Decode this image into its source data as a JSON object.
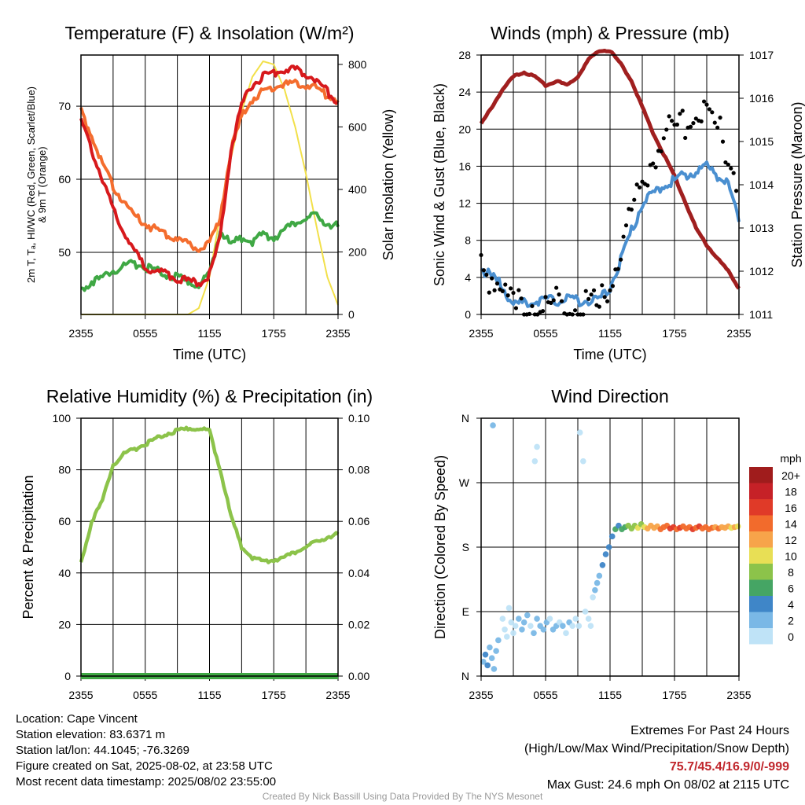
{
  "chart_data": [
    {
      "type": "line",
      "title": "Temperature (F) & Insolation (W/m²)",
      "xlabel": "Time (UTC)",
      "ylabel": "2m T, Tₐ, HI/WC (Red, Green, Scarlet/Blue) & 9m T (Orange)",
      "ylabel_right": "Solar Insolation (Yellow)",
      "x_ticks": [
        "2355",
        "0555",
        "1155",
        "1755",
        "2355"
      ],
      "ylim": [
        41.5,
        77
      ],
      "y_ticks": [
        50,
        60,
        70
      ],
      "ylim_right": [
        0,
        830
      ],
      "y_ticks_right": [
        0,
        200,
        400,
        600,
        800
      ],
      "x": [
        0,
        1,
        2,
        3,
        4,
        5,
        6,
        7,
        8,
        9,
        10,
        11,
        12,
        13,
        14,
        15,
        16,
        17,
        18,
        19,
        20,
        21,
        22,
        23,
        24
      ],
      "series": [
        {
          "name": "2m T",
          "color": "#d7191c",
          "values": [
            68,
            64,
            60,
            56,
            53,
            50,
            48,
            47.5,
            47,
            46.5,
            46,
            45.8,
            47,
            52,
            64,
            70,
            73,
            74,
            74.5,
            75,
            75,
            74.5,
            73.5,
            72,
            70.5
          ]
        },
        {
          "name": "9m T",
          "color": "#f46d2e",
          "values": [
            69.5,
            66,
            62,
            59,
            57,
            55,
            54,
            53,
            52.5,
            52,
            51,
            50.5,
            51,
            55,
            64,
            68.5,
            71,
            72,
            72.5,
            73,
            73,
            73,
            72.5,
            71.5,
            70.8
          ]
        },
        {
          "name": "Td",
          "color": "#3fa844",
          "values": [
            45,
            46,
            46.5,
            47.5,
            48,
            48.5,
            48,
            47.5,
            47,
            46.5,
            46,
            45.5,
            47,
            53,
            51,
            52,
            51.5,
            52.5,
            52,
            53,
            54,
            54.5,
            55,
            54,
            53.5
          ]
        },
        {
          "name": "Solar Insolation",
          "axis": "right",
          "color": "#f2e04a",
          "values": [
            0,
            0,
            0,
            0,
            0,
            0,
            0,
            0,
            0,
            0,
            0,
            20,
            120,
            320,
            500,
            650,
            760,
            810,
            800,
            720,
            600,
            450,
            280,
            120,
            30
          ]
        }
      ],
      "grid": true
    },
    {
      "type": "scatter",
      "title": "Winds (mph) & Pressure (mb)",
      "xlabel": "Time (UTC)",
      "ylabel": "Sonic Wind & Gust (Blue, Black)",
      "ylabel_right": "Station Pressure (Maroon)",
      "x_ticks": [
        "2355",
        "0555",
        "1155",
        "1755",
        "2355"
      ],
      "ylim": [
        0,
        28
      ],
      "y_ticks": [
        0,
        4,
        8,
        12,
        16,
        20,
        24,
        28
      ],
      "ylim_right": [
        1011,
        1017
      ],
      "y_ticks_right": [
        1011,
        1012,
        1013,
        1014,
        1015,
        1016,
        1017
      ],
      "x": [
        0,
        1,
        2,
        3,
        4,
        5,
        6,
        7,
        8,
        9,
        10,
        11,
        12,
        13,
        14,
        15,
        16,
        17,
        18,
        19,
        20,
        21,
        22,
        23,
        24
      ],
      "series": [
        {
          "name": "Wind",
          "color": "#4a8fd0",
          "values": [
            5,
            4,
            3,
            1,
            1.2,
            1.5,
            1.5,
            1.5,
            1.8,
            1.5,
            1.6,
            1.4,
            3,
            6,
            9,
            12,
            13,
            14,
            14.5,
            15,
            15.5,
            16,
            15,
            14,
            10
          ]
        },
        {
          "name": "Gust",
          "color": "#000000",
          "values": [
            6,
            5,
            4,
            1.5,
            1.8,
            2,
            2,
            2,
            2.2,
            2,
            2,
            1.8,
            4,
            8,
            12,
            15,
            18,
            20,
            21,
            22,
            23,
            22.5,
            21,
            18,
            15
          ]
        },
        {
          "name": "Pressure",
          "axis": "right",
          "color": "#a01f1f",
          "values": [
            1015.4,
            1015.8,
            1016.2,
            1016.5,
            1016.6,
            1016.5,
            1016.3,
            1016.4,
            1016.3,
            1016.5,
            1016.9,
            1017.1,
            1017.1,
            1016.8,
            1016.4,
            1015.8,
            1015.2,
            1014.7,
            1014.2,
            1013.6,
            1013.0,
            1012.6,
            1012.3,
            1012.0,
            1011.6
          ]
        }
      ],
      "grid": true
    },
    {
      "type": "line",
      "title": "Relative Humidity (%) & Precipitation (in)",
      "xlabel": "",
      "ylabel": "Percent & Precipitation",
      "x_ticks": [
        "2355",
        "0555",
        "1155",
        "1755",
        "2355"
      ],
      "ylim": [
        0,
        100
      ],
      "y_ticks": [
        0,
        20,
        40,
        60,
        80,
        100
      ],
      "ylim_right": [
        0,
        0.1
      ],
      "y_ticks_right": [
        "0.00",
        "0.02",
        "0.04",
        "0.06",
        "0.08",
        "0.10"
      ],
      "x": [
        0,
        1,
        2,
        3,
        4,
        5,
        6,
        7,
        8,
        9,
        10,
        11,
        12,
        13,
        14,
        15,
        16,
        17,
        18,
        19,
        20,
        21,
        22,
        23,
        24
      ],
      "series": [
        {
          "name": "RH",
          "color": "#8cc34a",
          "values": [
            44,
            60,
            68,
            82,
            86,
            88,
            90,
            92,
            94,
            95,
            96,
            96,
            95,
            80,
            62,
            50,
            46,
            44.5,
            45,
            46,
            48,
            50,
            52,
            54,
            55
          ]
        },
        {
          "name": "Precipitation",
          "color": "#3fa844",
          "values": [
            0,
            0,
            0,
            0,
            0,
            0,
            0,
            0,
            0,
            0,
            0,
            0,
            0,
            0,
            0,
            0,
            0,
            0,
            0,
            0,
            0,
            0,
            0,
            0,
            0
          ]
        }
      ],
      "grid": true
    },
    {
      "type": "scatter",
      "title": "Wind Direction",
      "ylabel": "Direction (Colored By Speed)",
      "x_ticks": [
        "2355",
        "0555",
        "1155",
        "1755",
        "2355"
      ],
      "y_ticks": [
        "N",
        "E",
        "S",
        "W",
        "N"
      ],
      "ylim": [
        0,
        360
      ],
      "legend_title": "mph",
      "legend_labels": [
        "20+",
        "18",
        "16",
        "14",
        "12",
        "10",
        "8",
        "6",
        "4",
        "2",
        "0"
      ],
      "legend_colors": [
        "#a01c1c",
        "#c62127",
        "#e03a28",
        "#f26b2c",
        "#f7a44a",
        "#e8df55",
        "#8cc34a",
        "#45a564",
        "#3f86c8",
        "#7ab8e6",
        "#bfe3f7"
      ],
      "points": [
        {
          "t": 0.2,
          "dir": 20,
          "spd": 3
        },
        {
          "t": 0.4,
          "dir": 30,
          "spd": 4
        },
        {
          "t": 0.6,
          "dir": 15,
          "spd": 4
        },
        {
          "t": 0.8,
          "dir": 40,
          "spd": 3
        },
        {
          "t": 1.0,
          "dir": 25,
          "spd": 2
        },
        {
          "t": 1.2,
          "dir": 10,
          "spd": 3
        },
        {
          "t": 1.4,
          "dir": 35,
          "spd": 2
        },
        {
          "t": 1.6,
          "dir": 50,
          "spd": 2
        },
        {
          "t": 1.1,
          "dir": 350,
          "spd": 3
        },
        {
          "t": 2.0,
          "dir": 80,
          "spd": 1
        },
        {
          "t": 2.2,
          "dir": 65,
          "spd": 1
        },
        {
          "t": 2.4,
          "dir": 55,
          "spd": 1
        },
        {
          "t": 2.6,
          "dir": 95,
          "spd": 1
        },
        {
          "t": 2.8,
          "dir": 75,
          "spd": 1
        },
        {
          "t": 3.0,
          "dir": 60,
          "spd": 1
        },
        {
          "t": 3.2,
          "dir": 70,
          "spd": 1
        },
        {
          "t": 3.5,
          "dir": 80,
          "spd": 2
        },
        {
          "t": 3.8,
          "dir": 65,
          "spd": 2
        },
        {
          "t": 4.0,
          "dir": 75,
          "spd": 2
        },
        {
          "t": 4.3,
          "dir": 85,
          "spd": 2
        },
        {
          "t": 4.6,
          "dir": 70,
          "spd": 1
        },
        {
          "t": 4.9,
          "dir": 60,
          "spd": 2
        },
        {
          "t": 5.2,
          "dir": 80,
          "spd": 2
        },
        {
          "t": 5.5,
          "dir": 70,
          "spd": 3
        },
        {
          "t": 5.8,
          "dir": 65,
          "spd": 2
        },
        {
          "t": 6.1,
          "dir": 75,
          "spd": 2
        },
        {
          "t": 6.4,
          "dir": 80,
          "spd": 1
        },
        {
          "t": 6.7,
          "dir": 65,
          "spd": 2
        },
        {
          "t": 7.0,
          "dir": 70,
          "spd": 2
        },
        {
          "t": 7.3,
          "dir": 75,
          "spd": 1
        },
        {
          "t": 7.6,
          "dir": 70,
          "spd": 2
        },
        {
          "t": 7.9,
          "dir": 60,
          "spd": 1
        },
        {
          "t": 8.2,
          "dir": 75,
          "spd": 2
        },
        {
          "t": 8.5,
          "dir": 70,
          "spd": 1
        },
        {
          "t": 8.8,
          "dir": 80,
          "spd": 1
        },
        {
          "t": 9.1,
          "dir": 70,
          "spd": 1
        },
        {
          "t": 5.0,
          "dir": 300,
          "spd": 1
        },
        {
          "t": 5.2,
          "dir": 320,
          "spd": 1
        },
        {
          "t": 9.2,
          "dir": 340,
          "spd": 1
        },
        {
          "t": 9.5,
          "dir": 300,
          "spd": 1
        },
        {
          "t": 9.7,
          "dir": 90,
          "spd": 1
        },
        {
          "t": 10.0,
          "dir": 80,
          "spd": 1
        },
        {
          "t": 10.2,
          "dir": 70,
          "spd": 1
        },
        {
          "t": 10.4,
          "dir": 110,
          "spd": 1
        },
        {
          "t": 10.6,
          "dir": 120,
          "spd": 2
        },
        {
          "t": 10.8,
          "dir": 130,
          "spd": 2
        },
        {
          "t": 11.0,
          "dir": 140,
          "spd": 3
        },
        {
          "t": 11.3,
          "dir": 155,
          "spd": 4
        },
        {
          "t": 11.6,
          "dir": 170,
          "spd": 5
        },
        {
          "t": 11.9,
          "dir": 180,
          "spd": 4
        },
        {
          "t": 12.2,
          "dir": 195,
          "spd": 5
        },
        {
          "t": 12.5,
          "dir": 205,
          "spd": 6
        },
        {
          "t": 12.8,
          "dir": 210,
          "spd": 5
        },
        {
          "t": 13.1,
          "dir": 205,
          "spd": 6
        },
        {
          "t": 13.4,
          "dir": 208,
          "spd": 7
        },
        {
          "t": 13.7,
          "dir": 210,
          "spd": 8
        },
        {
          "t": 14.0,
          "dir": 206,
          "spd": 8
        },
        {
          "t": 14.3,
          "dir": 210,
          "spd": 9
        },
        {
          "t": 14.6,
          "dir": 207,
          "spd": 10
        },
        {
          "t": 14.9,
          "dir": 212,
          "spd": 9
        },
        {
          "t": 15.2,
          "dir": 208,
          "spd": 11
        },
        {
          "t": 15.5,
          "dir": 206,
          "spd": 12
        },
        {
          "t": 15.8,
          "dir": 210,
          "spd": 12
        },
        {
          "t": 16.1,
          "dir": 207,
          "spd": 13
        },
        {
          "t": 16.4,
          "dir": 209,
          "spd": 13
        },
        {
          "t": 16.7,
          "dir": 205,
          "spd": 14
        },
        {
          "t": 17.0,
          "dir": 208,
          "spd": 14
        },
        {
          "t": 17.3,
          "dir": 210,
          "spd": 15
        },
        {
          "t": 17.6,
          "dir": 206,
          "spd": 16
        },
        {
          "t": 17.9,
          "dir": 208,
          "spd": 16
        },
        {
          "t": 18.2,
          "dir": 205,
          "spd": 15
        },
        {
          "t": 18.5,
          "dir": 207,
          "spd": 16
        },
        {
          "t": 18.8,
          "dir": 209,
          "spd": 15
        },
        {
          "t": 19.1,
          "dir": 206,
          "spd": 14
        },
        {
          "t": 19.4,
          "dir": 208,
          "spd": 15
        },
        {
          "t": 19.7,
          "dir": 205,
          "spd": 16
        },
        {
          "t": 20.0,
          "dir": 207,
          "spd": 15
        },
        {
          "t": 20.3,
          "dir": 209,
          "spd": 16
        },
        {
          "t": 20.6,
          "dir": 206,
          "spd": 15
        },
        {
          "t": 20.9,
          "dir": 208,
          "spd": 14
        },
        {
          "t": 21.2,
          "dir": 205,
          "spd": 15
        },
        {
          "t": 21.5,
          "dir": 207,
          "spd": 14
        },
        {
          "t": 21.8,
          "dir": 208,
          "spd": 13
        },
        {
          "t": 22.1,
          "dir": 206,
          "spd": 14
        },
        {
          "t": 22.4,
          "dir": 208,
          "spd": 13
        },
        {
          "t": 22.7,
          "dir": 207,
          "spd": 12
        },
        {
          "t": 23.0,
          "dir": 209,
          "spd": 12
        },
        {
          "t": 23.3,
          "dir": 207,
          "spd": 11
        },
        {
          "t": 23.6,
          "dir": 208,
          "spd": 12
        },
        {
          "t": 23.9,
          "dir": 209,
          "spd": 10
        }
      ],
      "grid": true
    }
  ],
  "info": {
    "location": "Location: Cape Vincent",
    "elevation": "Station elevation: 83.6371 m",
    "latlon": "Station lat/lon: 44.1045; -76.3269",
    "created": "Figure created on Sat, 2025-08-02, at 23:58 UTC",
    "recent": "Most recent data timestamp: 2025/08/02 23:55:00"
  },
  "extremes": {
    "heading": "Extremes For Past 24 Hours",
    "subheading": "(High/Low/Max Wind/Precipitation/Snow Depth)",
    "values": "75.7/45.4/16.9/0/-999",
    "gust": "Max Gust: 24.6 mph On 08/02 at 2115 UTC"
  },
  "credit": "Created By Nick Bassill Using Data Provided By The NYS Mesonet"
}
